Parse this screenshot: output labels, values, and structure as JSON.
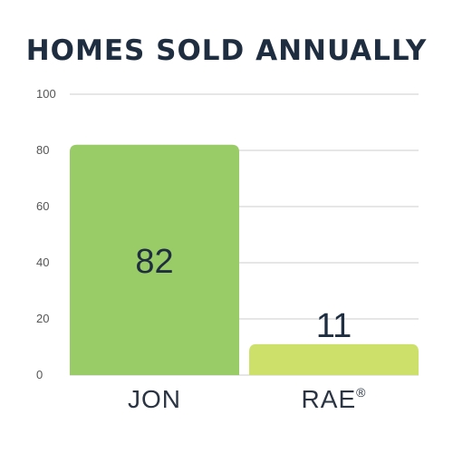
{
  "chart_data": {
    "type": "bar",
    "title": "HOMES SOLD ANNUALLY",
    "xlabel": "",
    "ylabel": "",
    "categories": [
      "JON",
      "RAE"
    ],
    "values": [
      82,
      11
    ],
    "data_labels": [
      "82",
      "11"
    ],
    "category_marks": [
      "",
      "®"
    ],
    "ylim": [
      0,
      100
    ],
    "yticks": [
      0,
      20,
      40,
      60,
      80,
      100
    ],
    "grid": true,
    "legend": "none",
    "colors": [
      "#99cc66",
      "#cce06a"
    ],
    "grid_color": "#cccccc",
    "text_color": "#1f2d40"
  }
}
